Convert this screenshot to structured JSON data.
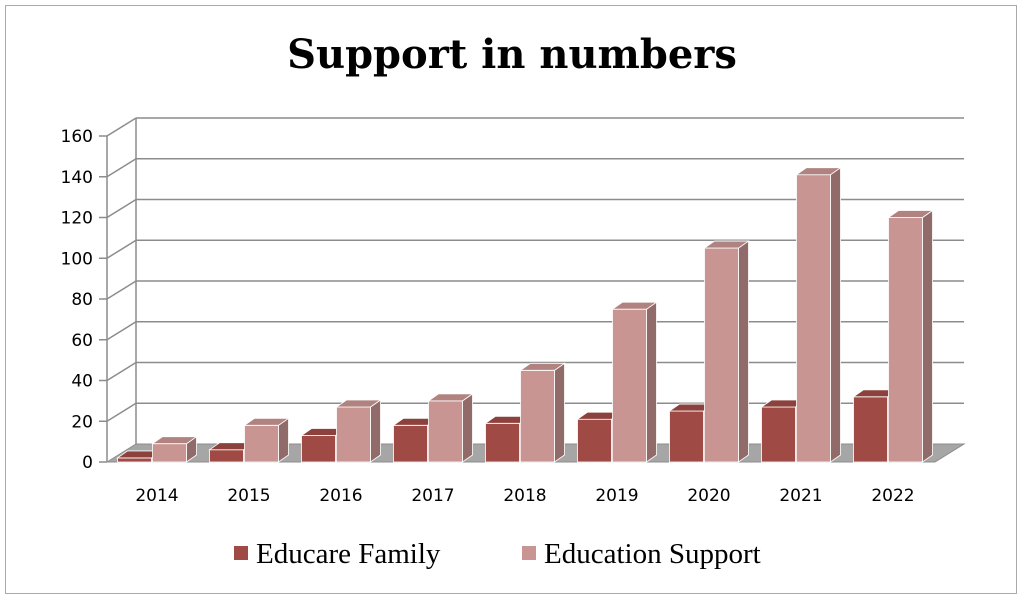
{
  "chart_data": {
    "type": "bar",
    "title": "Support in numbers",
    "xlabel": "",
    "ylabel": "",
    "categories": [
      "2014",
      "2015",
      "2016",
      "2017",
      "2018",
      "2019",
      "2020",
      "2021",
      "2022"
    ],
    "series": [
      {
        "name": "Educare Family",
        "values": [
          2,
          6,
          13,
          18,
          19,
          21,
          25,
          27,
          32
        ],
        "color": "#a04a45"
      },
      {
        "name": "Education Support",
        "values": [
          9,
          18,
          27,
          30,
          45,
          75,
          105,
          141,
          120
        ],
        "color": "#c99592"
      }
    ],
    "ylim": [
      0,
      160
    ],
    "yticks": [
      "0",
      "20",
      "40",
      "60",
      "80",
      "100",
      "120",
      "140",
      "160"
    ],
    "grid": true,
    "legend_position": "bottom"
  }
}
